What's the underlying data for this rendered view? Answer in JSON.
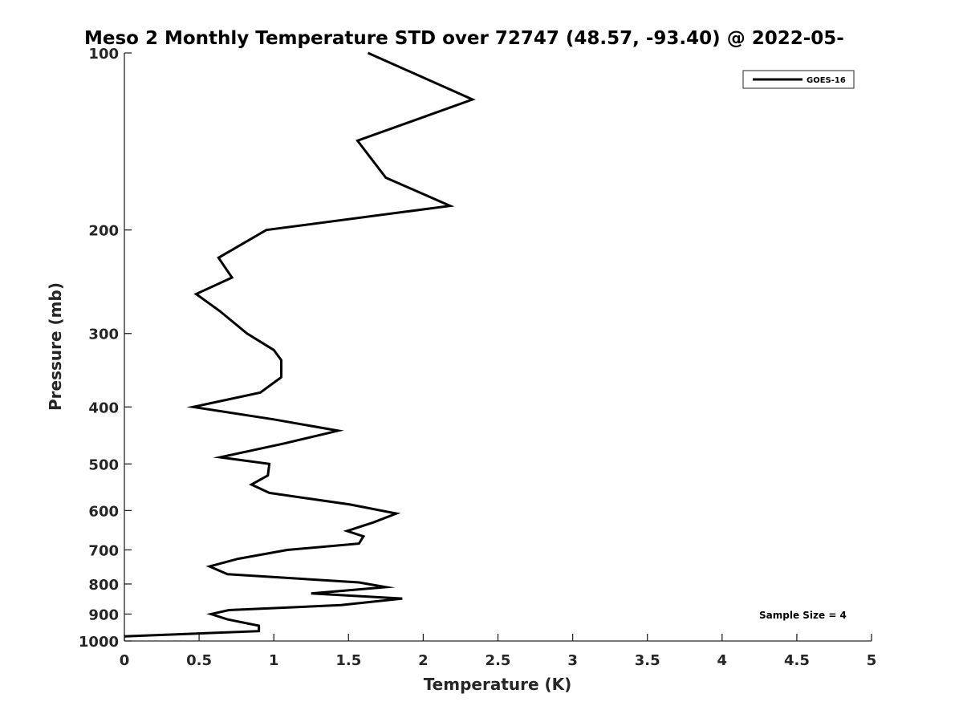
{
  "chart_data": {
    "type": "line",
    "title": "Meso 2 Monthly Temperature STD over 72747 (48.57, -93.40) @ 2022-05-",
    "xlabel": "Temperature (K)",
    "ylabel": "Pressure (mb)",
    "xlim": [
      0,
      5
    ],
    "ylim": [
      100,
      1000
    ],
    "y_scale": "log",
    "y_reversed": true,
    "grid": false,
    "x_ticks": [
      "0",
      "0.5",
      "1",
      "1.5",
      "2",
      "2.5",
      "3",
      "3.5",
      "4",
      "4.5",
      "5"
    ],
    "y_ticks": [
      "100",
      "200",
      "300",
      "400",
      "500",
      "600",
      "700",
      "800",
      "900",
      "1000"
    ],
    "legend": {
      "position": "top-right",
      "entries": [
        "GOES-16"
      ]
    },
    "annotation": "Sample Size = 4",
    "series": [
      {
        "name": "GOES-16",
        "color": "#000000",
        "points": [
          [
            1.63,
            100
          ],
          [
            2.33,
            120
          ],
          [
            1.56,
            141
          ],
          [
            1.75,
            163
          ],
          [
            2.18,
            182
          ],
          [
            0.95,
            200
          ],
          [
            0.63,
            223
          ],
          [
            0.72,
            241
          ],
          [
            0.48,
            257
          ],
          [
            0.64,
            275
          ],
          [
            0.82,
            300
          ],
          [
            1.0,
            320
          ],
          [
            1.05,
            333
          ],
          [
            1.05,
            356
          ],
          [
            0.91,
            378
          ],
          [
            0.46,
            400
          ],
          [
            1.0,
            420
          ],
          [
            1.43,
            439
          ],
          [
            1.06,
            462
          ],
          [
            0.64,
            487
          ],
          [
            0.97,
            500
          ],
          [
            0.96,
            523
          ],
          [
            0.85,
            542
          ],
          [
            0.97,
            560
          ],
          [
            1.51,
            586
          ],
          [
            1.82,
            607
          ],
          [
            1.67,
            628
          ],
          [
            1.49,
            650
          ],
          [
            1.6,
            664
          ],
          [
            1.57,
            683
          ],
          [
            1.09,
            700
          ],
          [
            0.76,
            725
          ],
          [
            0.57,
            747
          ],
          [
            0.69,
            770
          ],
          [
            1.57,
            795
          ],
          [
            1.75,
            810
          ],
          [
            1.25,
            830
          ],
          [
            1.86,
            847
          ],
          [
            1.45,
            869
          ],
          [
            0.7,
            886
          ],
          [
            0.58,
            900
          ],
          [
            0.69,
            919
          ],
          [
            0.9,
            942
          ],
          [
            0.9,
            962
          ],
          [
            0.0,
            982
          ]
        ]
      }
    ]
  }
}
